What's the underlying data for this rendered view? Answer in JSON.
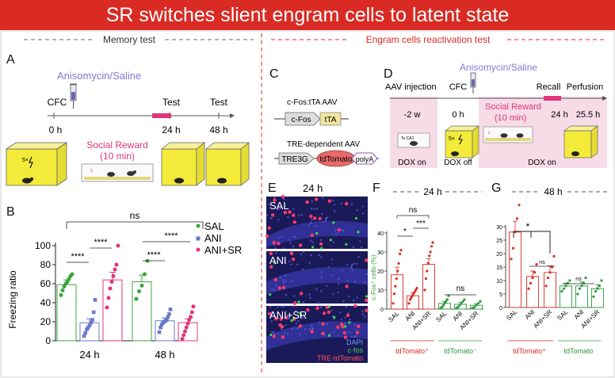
{
  "banner": {
    "title": "SR switches slient engram cells to latent state"
  },
  "sections": {
    "memory_test": "Memory test",
    "reactivation_test": "Engram cells reactivation test"
  },
  "panel_a": {
    "letter": "A",
    "drug": "Anisomycin/Saline",
    "steps": [
      "CFC",
      "Test",
      "Test"
    ],
    "times": [
      "0 h",
      "24 h",
      "48 h"
    ],
    "social_reward": "Social Reward",
    "sr_duration": "(10 min)",
    "shock": "5×"
  },
  "panel_b": {
    "letter": "B",
    "legend": [
      "SAL",
      "ANI",
      "ANI+SR"
    ],
    "stats_24h": [
      "****",
      "****"
    ],
    "stats_48h": [
      "****",
      "****"
    ],
    "ns": "ns"
  },
  "panel_c": {
    "letter": "C",
    "construct1_title": "c-Fos:tTA AAV",
    "construct1_parts": [
      "c-Fos",
      "tTA"
    ],
    "construct2_title": "TRE-dependent AAV",
    "construct2_parts": [
      "TRE3G",
      "tdTomato",
      "polyA"
    ]
  },
  "panel_d": {
    "letter": "D",
    "drug": "Anisomycin/Saline",
    "steps": [
      "AAV injection",
      "CFC",
      "Recall",
      "Perfusion"
    ],
    "times": [
      "-2 w",
      "0 h",
      "24 h",
      "25.5 h"
    ],
    "social_reward": "Social Reward",
    "sr_duration": "(10 min)",
    "dox": [
      "DOX on",
      "DOX off",
      "DOX on"
    ],
    "shock": "5×",
    "injection_label": "To CA1"
  },
  "panel_e": {
    "letter": "E",
    "time": "24 h",
    "rows": [
      "SAL",
      "ANI",
      "ANI+SR"
    ],
    "stain_legend": [
      "DAPI",
      "c-fos",
      "TRE-tdTomato"
    ]
  },
  "panel_f": {
    "letter": "F",
    "time": "24 h",
    "ylabel": "c-Fos⁺ cells (%)",
    "groups": [
      "tdTomato⁺",
      "tdTomato⁻"
    ],
    "xticks": [
      "SAL",
      "ANI",
      "ANI+SR",
      "SAL",
      "ANI",
      "ANI+SR"
    ],
    "stats": [
      "*",
      "***",
      "ns",
      "ns"
    ]
  },
  "panel_g": {
    "letter": "G",
    "time": "48 h",
    "groups": [
      "tdTomato⁺",
      "tdTomato"
    ],
    "xticks": [
      "SAL",
      "ANI",
      "ANI+SR",
      "SAL",
      "ANI",
      "ANI+SR"
    ],
    "stats": [
      "*",
      "ns",
      "ns"
    ]
  },
  "colors": {
    "sal": "#3aa53a",
    "ani": "#6a78c8",
    "ani_sr": "#e0357a",
    "red": "#d92b24",
    "green": "#2e9a3e",
    "pink_bg": "#f7dbe7",
    "yellow": "#f3ea3a"
  },
  "chart_data": [
    {
      "type": "bar",
      "panel": "B",
      "categories": [
        "24 h",
        "48 h"
      ],
      "series": [
        {
          "name": "SAL",
          "values": [
            59,
            62
          ],
          "errors": [
            5,
            7
          ]
        },
        {
          "name": "ANI",
          "values": [
            19,
            21
          ],
          "errors": [
            4,
            3
          ]
        },
        {
          "name": "ANI+SR",
          "values": [
            64,
            19
          ],
          "errors": [
            8,
            4
          ]
        }
      ],
      "ylabel": "Freezing ratio",
      "ylim": [
        0,
        100
      ],
      "yticks": [
        0,
        20,
        40,
        60,
        80,
        100
      ],
      "points": {
        "24 h": {
          "SAL": [
            48,
            53,
            57,
            60,
            62,
            65,
            68,
            70
          ],
          "ANI": [
            5,
            8,
            12,
            14,
            16,
            19,
            22,
            30,
            43
          ],
          "ANI+SR": [
            35,
            45,
            55,
            62,
            68,
            75,
            80,
            100
          ]
        },
        "48 h": {
          "SAL": [
            44,
            52,
            58,
            70,
            84
          ],
          "ANI": [
            9,
            14,
            17,
            19,
            20,
            21,
            22,
            25,
            28,
            33
          ],
          "ANI+SR": [
            2,
            6,
            10,
            14,
            18,
            22,
            25,
            30,
            36
          ]
        }
      }
    },
    {
      "type": "bar",
      "panel": "F",
      "categories": [
        "SAL",
        "ANI",
        "ANI+SR",
        "SAL",
        "ANI",
        "ANI+SR"
      ],
      "values": [
        18,
        7,
        23.5,
        3,
        2.5,
        2
      ],
      "errors": [
        4,
        1.5,
        3,
        1,
        1,
        0.8
      ],
      "ylabel": "c-Fos⁺ cells (%)",
      "ylim": [
        0,
        40
      ],
      "yticks": [
        0,
        10,
        20,
        30,
        40
      ],
      "points": [
        [
          3,
          8,
          12,
          16,
          20,
          24,
          29,
          31
        ],
        [
          3,
          5,
          6,
          7,
          8,
          9,
          10,
          11
        ],
        [
          10,
          16,
          20,
          24,
          28,
          30,
          33,
          35
        ],
        [
          0.5,
          1,
          2,
          3,
          4,
          5,
          7
        ],
        [
          0.5,
          1,
          2,
          3,
          4,
          5
        ],
        [
          0.5,
          1,
          2,
          3,
          4
        ]
      ]
    },
    {
      "type": "bar",
      "panel": "G",
      "categories": [
        "SAL",
        "ANI",
        "ANI+SR",
        "SAL",
        "ANI",
        "ANI+SR"
      ],
      "values": [
        28,
        11.5,
        13,
        8,
        8,
        7
      ],
      "errors": [
        4,
        2,
        2.5,
        1,
        1.5,
        1.5
      ],
      "ylim": [
        0,
        30
      ],
      "yticks": [
        0,
        5,
        10,
        15,
        20,
        25,
        30
      ],
      "points": [
        [
          18,
          22,
          28,
          33,
          38
        ],
        [
          7,
          9,
          11,
          13,
          16
        ],
        [
          8,
          11,
          13,
          15,
          19
        ],
        [
          6,
          7,
          8,
          9,
          10
        ],
        [
          5,
          7,
          8,
          9,
          11
        ],
        [
          4,
          6,
          7,
          8,
          10
        ]
      ]
    }
  ]
}
